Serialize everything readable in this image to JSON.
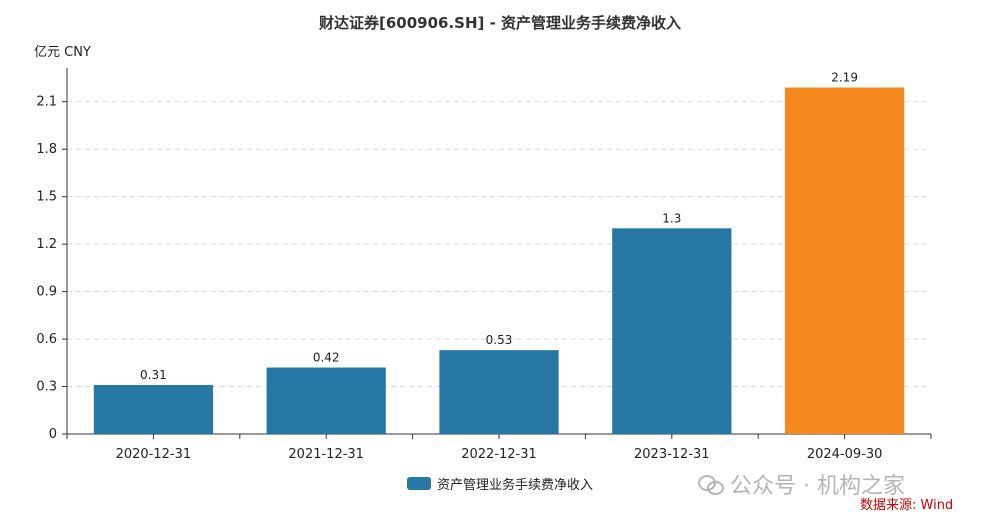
{
  "title": "财达证券[600906.SH] - 资产管理业务手续费净收入",
  "unit": "亿元  CNY",
  "watermark": "公众号 · 机构之家",
  "source": "数据来源: Wind",
  "colors": {
    "normal": "#2878a6",
    "highlight": "#f68a1e",
    "grid": "#d9d9d9",
    "axis": "#333333"
  },
  "chart_data": {
    "type": "bar",
    "categories": [
      "2020-12-31",
      "2021-12-31",
      "2022-12-31",
      "2023-12-31",
      "2024-09-30"
    ],
    "series": [
      {
        "name": "资产管理业务手续费净收入",
        "values": [
          0.31,
          0.42,
          0.53,
          1.3,
          2.19
        ]
      }
    ],
    "data_labels": [
      "0.31",
      "0.42",
      "0.53",
      "1.3",
      "2.19"
    ],
    "highlight_index": 4,
    "yticks": [
      "0",
      "0.3",
      "0.6",
      "0.9",
      "1.2",
      "1.5",
      "1.8",
      "2.1"
    ],
    "ylim": [
      0,
      2.25
    ],
    "grid": true,
    "legend": "bottom-center"
  }
}
